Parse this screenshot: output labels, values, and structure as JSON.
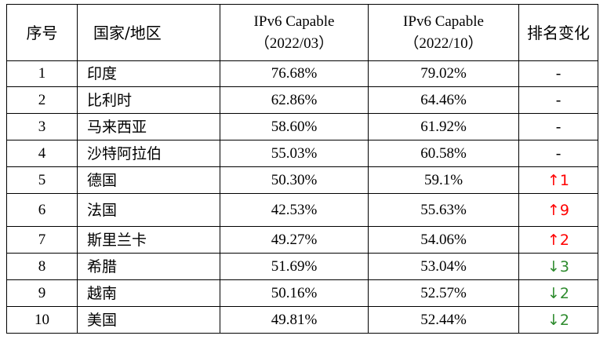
{
  "headers": {
    "index": "序号",
    "country": "国家/地区",
    "march_line1": "IPv6 Capable",
    "march_line2": "（2022/03）",
    "oct_line1": "IPv6 Capable",
    "oct_line2": "（2022/10）",
    "rank_change": "排名变化"
  },
  "rows": [
    {
      "index": "1",
      "country": "印度",
      "march": "76.68%",
      "oct": "79.02%",
      "change": "-",
      "trend": "none"
    },
    {
      "index": "2",
      "country": "比利时",
      "march": "62.86%",
      "oct": "64.46%",
      "change": "-",
      "trend": "none"
    },
    {
      "index": "3",
      "country": "马来西亚",
      "march": "58.60%",
      "oct": "61.92%",
      "change": "-",
      "trend": "none"
    },
    {
      "index": "4",
      "country": "沙特阿拉伯",
      "march": "55.03%",
      "oct": "60.58%",
      "change": "-",
      "trend": "none"
    },
    {
      "index": "5",
      "country": "德国",
      "march": "50.30%",
      "oct": "59.1%",
      "change": "↑1",
      "trend": "up"
    },
    {
      "index": "6",
      "country": "法国",
      "march": "42.53%",
      "oct": "55.63%",
      "change": "↑9",
      "trend": "up"
    },
    {
      "index": "7",
      "country": "斯里兰卡",
      "march": "49.27%",
      "oct": "54.06%",
      "change": "↑2",
      "trend": "up"
    },
    {
      "index": "8",
      "country": "希腊",
      "march": "51.69%",
      "oct": "53.04%",
      "change": "↓3",
      "trend": "down"
    },
    {
      "index": "9",
      "country": "越南",
      "march": "50.16%",
      "oct": "52.57%",
      "change": "↓2",
      "trend": "down"
    },
    {
      "index": "10",
      "country": "美国",
      "march": "49.81%",
      "oct": "52.44%",
      "change": "↓2",
      "trend": "down"
    }
  ],
  "colors": {
    "up": "#ff0000",
    "down": "#2e8b2e",
    "none": "#000000"
  }
}
